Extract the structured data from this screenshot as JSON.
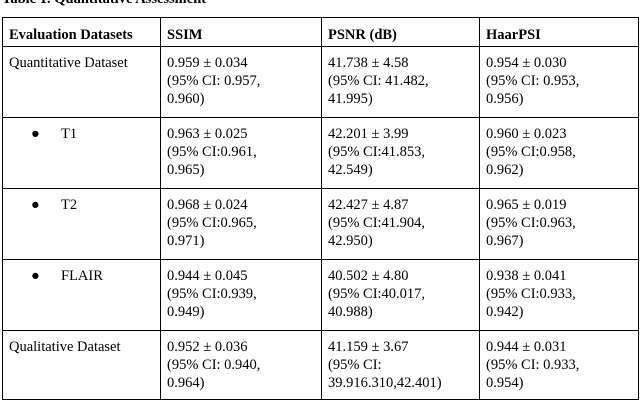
{
  "caption": "Table 1. Quantitative Assessment",
  "headers": [
    "Evaluation Datasets",
    "SSIM",
    "PSNR (dB)",
    "HaarPSI"
  ],
  "rows": [
    {
      "label": "Quantitative Dataset",
      "bullet": false,
      "ssim": [
        "0.959 ± 0.034",
        "(95% CI: 0.957,",
        "0.960)"
      ],
      "psnr": [
        "41.738 ± 4.58",
        "(95% CI: 41.482,",
        "41.995)"
      ],
      "haarpsi": [
        "0.954 ± 0.030",
        "(95% CI: 0.953,",
        "0.956)"
      ]
    },
    {
      "label": "T1",
      "bullet": true,
      "ssim": [
        "0.963 ± 0.025",
        "(95% CI:0.961,",
        "0.965)"
      ],
      "psnr": [
        "42.201 ± 3.99",
        "(95% CI:41.853,",
        "42.549)"
      ],
      "haarpsi": [
        "0.960 ± 0.023",
        "(95% CI:0.958,",
        "0.962)"
      ]
    },
    {
      "label": "T2",
      "bullet": true,
      "ssim": [
        "0.968 ± 0.024",
        "(95% CI:0.965,",
        "0.971)"
      ],
      "psnr": [
        "42.427 ± 4.87",
        "(95% CI:41.904,",
        "42.950)"
      ],
      "haarpsi": [
        "0.965 ± 0.019",
        "(95% CI:0.963,",
        "0.967)"
      ]
    },
    {
      "label": "FLAIR",
      "bullet": true,
      "ssim": [
        "0.944 ± 0.045",
        "(95% CI:0.939,",
        "0.949)"
      ],
      "psnr": [
        "40.502 ± 4.80",
        "(95% CI:40.017,",
        "40.988)"
      ],
      "haarpsi": [
        "0.938 ± 0.041",
        "(95% CI:0.933,",
        "0.942)"
      ]
    },
    {
      "label": "Qualitative Dataset",
      "bullet": false,
      "ssim": [
        "0.952 ± 0.036",
        "(95% CI: 0.940,",
        "0.964)"
      ],
      "psnr": [
        "41.159 ± 3.67",
        "(95% CI:",
        "39.916.310,42.401)"
      ],
      "haarpsi": [
        "0.944 ± 0.031",
        "(95% CI: 0.933,",
        "0.954)"
      ]
    }
  ],
  "bullet_glyph": "●"
}
